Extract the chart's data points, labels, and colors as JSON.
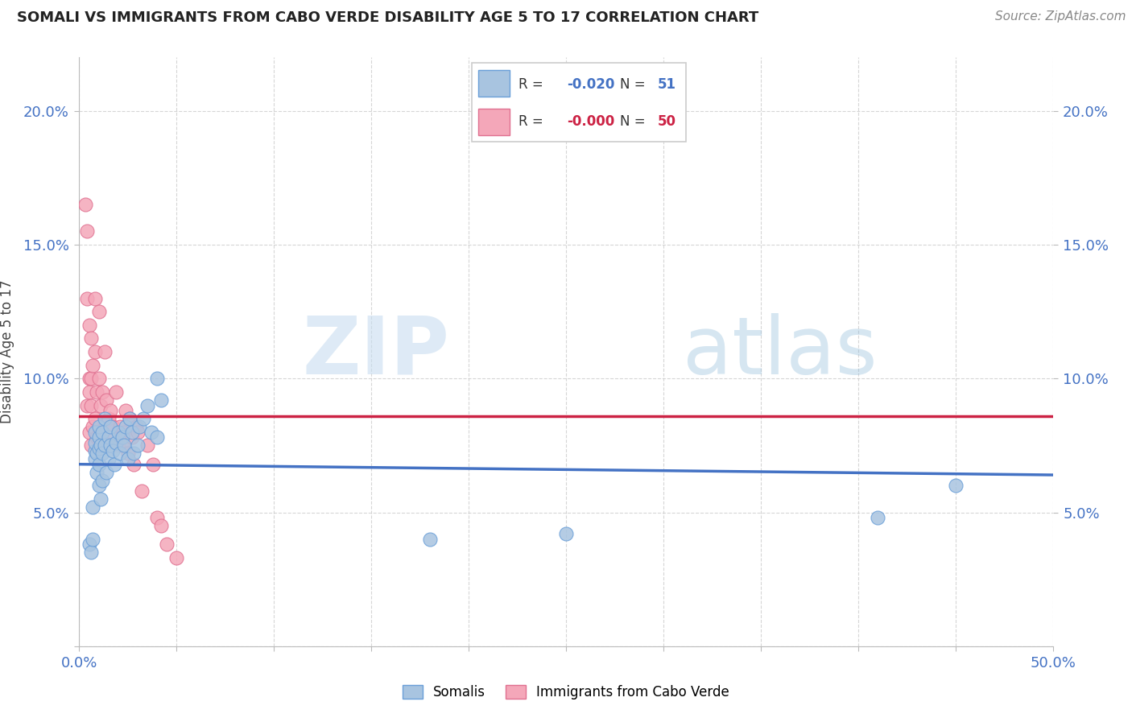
{
  "title": "SOMALI VS IMMIGRANTS FROM CABO VERDE DISABILITY AGE 5 TO 17 CORRELATION CHART",
  "source": "Source: ZipAtlas.com",
  "ylabel": "Disability Age 5 to 17",
  "xlim": [
    0.0,
    0.5
  ],
  "ylim": [
    0.0,
    0.22
  ],
  "somali_x": [
    0.005,
    0.006,
    0.007,
    0.007,
    0.008,
    0.008,
    0.008,
    0.008,
    0.009,
    0.009,
    0.01,
    0.01,
    0.01,
    0.01,
    0.01,
    0.011,
    0.011,
    0.012,
    0.012,
    0.012,
    0.013,
    0.013,
    0.014,
    0.015,
    0.015,
    0.016,
    0.016,
    0.017,
    0.018,
    0.019,
    0.02,
    0.021,
    0.022,
    0.023,
    0.024,
    0.025,
    0.026,
    0.027,
    0.028,
    0.03,
    0.031,
    0.033,
    0.035,
    0.037,
    0.04,
    0.04,
    0.042,
    0.18,
    0.25,
    0.41,
    0.45
  ],
  "somali_y": [
    0.038,
    0.035,
    0.04,
    0.052,
    0.07,
    0.073,
    0.076,
    0.08,
    0.065,
    0.072,
    0.06,
    0.068,
    0.074,
    0.078,
    0.082,
    0.055,
    0.075,
    0.062,
    0.072,
    0.08,
    0.075,
    0.085,
    0.065,
    0.07,
    0.078,
    0.075,
    0.082,
    0.073,
    0.068,
    0.076,
    0.08,
    0.072,
    0.078,
    0.075,
    0.082,
    0.07,
    0.085,
    0.08,
    0.072,
    0.075,
    0.082,
    0.085,
    0.09,
    0.08,
    0.078,
    0.1,
    0.092,
    0.04,
    0.042,
    0.048,
    0.06
  ],
  "cabo_x": [
    0.003,
    0.004,
    0.004,
    0.004,
    0.005,
    0.005,
    0.005,
    0.005,
    0.006,
    0.006,
    0.006,
    0.006,
    0.007,
    0.007,
    0.008,
    0.008,
    0.008,
    0.009,
    0.009,
    0.01,
    0.01,
    0.01,
    0.011,
    0.012,
    0.012,
    0.013,
    0.014,
    0.015,
    0.016,
    0.017,
    0.018,
    0.019,
    0.02,
    0.021,
    0.022,
    0.023,
    0.024,
    0.025,
    0.026,
    0.027,
    0.028,
    0.029,
    0.03,
    0.032,
    0.035,
    0.038,
    0.04,
    0.042,
    0.045,
    0.05
  ],
  "cabo_y": [
    0.165,
    0.155,
    0.13,
    0.09,
    0.12,
    0.1,
    0.095,
    0.08,
    0.115,
    0.1,
    0.09,
    0.075,
    0.105,
    0.082,
    0.13,
    0.11,
    0.085,
    0.095,
    0.078,
    0.125,
    0.1,
    0.078,
    0.09,
    0.095,
    0.08,
    0.11,
    0.092,
    0.085,
    0.088,
    0.082,
    0.078,
    0.095,
    0.075,
    0.082,
    0.075,
    0.08,
    0.088,
    0.072,
    0.085,
    0.078,
    0.068,
    0.082,
    0.08,
    0.058,
    0.075,
    0.068,
    0.048,
    0.045,
    0.038,
    0.033
  ],
  "somali_line_y_start": 0.068,
  "somali_line_y_end": 0.064,
  "cabo_line_y_start": 0.086,
  "cabo_line_y_end": 0.086,
  "somali_R": -0.02,
  "somali_N": 51,
  "cabo_R": -0.0,
  "cabo_N": 50,
  "somali_line_color": "#4472c4",
  "cabo_line_color": "#cc2244",
  "somali_dot_color": "#a8c4e0",
  "cabo_dot_color": "#f4a7b9",
  "watermark_zip": "ZIP",
  "watermark_atlas": "atlas",
  "background_color": "#ffffff",
  "grid_color": "#cccccc",
  "grid_style": "--"
}
